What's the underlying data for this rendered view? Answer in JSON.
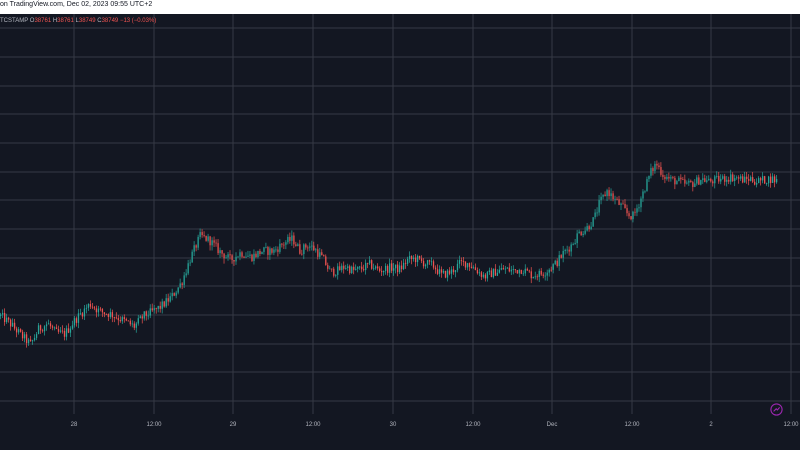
{
  "header": {
    "published": "on TradingView.com, Dec 02, 2023 09:55 UTC+2"
  },
  "legend": {
    "symbol_fragment": "TCSTAMP",
    "open": "38761",
    "high": "38761",
    "low": "38749",
    "close": "38749",
    "change": "−13 (−0.03%)"
  },
  "chart_data": {
    "type": "candlestick",
    "title": "",
    "x_ticks": [
      "28",
      "12:00",
      "29",
      "12:00",
      "30",
      "12:00",
      "Dec",
      "12:00",
      "2",
      "12:00"
    ],
    "x_range": [
      "Nov 27 19:00",
      "Dec 02 10:00"
    ],
    "y_range": [
      36300,
      38950
    ],
    "grid": true,
    "price_path": [
      [
        0.0,
        36950
      ],
      [
        0.01,
        36900
      ],
      [
        0.022,
        36820
      ],
      [
        0.032,
        36760
      ],
      [
        0.04,
        36860
      ],
      [
        0.05,
        36900
      ],
      [
        0.058,
        36840
      ],
      [
        0.068,
        36830
      ],
      [
        0.08,
        36930
      ],
      [
        0.095,
        37030
      ],
      [
        0.105,
        36980
      ],
      [
        0.118,
        36960
      ],
      [
        0.13,
        36920
      ],
      [
        0.142,
        36880
      ],
      [
        0.152,
        36950
      ],
      [
        0.162,
        36980
      ],
      [
        0.172,
        37020
      ],
      [
        0.182,
        37080
      ],
      [
        0.192,
        37170
      ],
      [
        0.202,
        37340
      ],
      [
        0.212,
        37480
      ],
      [
        0.222,
        37450
      ],
      [
        0.232,
        37380
      ],
      [
        0.244,
        37320
      ],
      [
        0.255,
        37370
      ],
      [
        0.266,
        37340
      ],
      [
        0.278,
        37380
      ],
      [
        0.29,
        37380
      ],
      [
        0.3,
        37430
      ],
      [
        0.31,
        37460
      ],
      [
        0.318,
        37380
      ],
      [
        0.326,
        37420
      ],
      [
        0.334,
        37390
      ],
      [
        0.342,
        37330
      ],
      [
        0.35,
        37240
      ],
      [
        0.358,
        37250
      ],
      [
        0.366,
        37280
      ],
      [
        0.374,
        37250
      ],
      [
        0.382,
        37260
      ],
      [
        0.392,
        37290
      ],
      [
        0.402,
        37250
      ],
      [
        0.414,
        37270
      ],
      [
        0.424,
        37260
      ],
      [
        0.432,
        37320
      ],
      [
        0.44,
        37330
      ],
      [
        0.45,
        37300
      ],
      [
        0.46,
        37280
      ],
      [
        0.468,
        37220
      ],
      [
        0.478,
        37240
      ],
      [
        0.488,
        37300
      ],
      [
        0.496,
        37300
      ],
      [
        0.504,
        37260
      ],
      [
        0.514,
        37210
      ],
      [
        0.524,
        37240
      ],
      [
        0.534,
        37260
      ],
      [
        0.544,
        37250
      ],
      [
        0.554,
        37260
      ],
      [
        0.564,
        37220
      ],
      [
        0.574,
        37230
      ],
      [
        0.58,
        37250
      ],
      [
        0.59,
        37300
      ],
      [
        0.598,
        37370
      ],
      [
        0.606,
        37420
      ],
      [
        0.614,
        37500
      ],
      [
        0.622,
        37530
      ],
      [
        0.63,
        37590
      ],
      [
        0.636,
        37700
      ],
      [
        0.644,
        37780
      ],
      [
        0.652,
        37720
      ],
      [
        0.66,
        37670
      ],
      [
        0.666,
        37620
      ],
      [
        0.672,
        37610
      ],
      [
        0.678,
        37700
      ],
      [
        0.684,
        37800
      ],
      [
        0.69,
        37900
      ],
      [
        0.696,
        37960
      ],
      [
        0.704,
        37880
      ],
      [
        0.712,
        37850
      ],
      [
        0.72,
        37840
      ],
      [
        0.728,
        37820
      ],
      [
        0.736,
        37830
      ],
      [
        0.744,
        37860
      ],
      [
        0.752,
        37840
      ],
      [
        0.76,
        37850
      ],
      [
        0.768,
        37860
      ],
      [
        0.776,
        37870
      ],
      [
        0.784,
        37860
      ],
      [
        0.79,
        37850
      ],
      [
        0.796,
        37860
      ],
      [
        0.802,
        37840
      ],
      [
        0.81,
        37850
      ],
      [
        0.818,
        37860
      ],
      [
        0.826,
        37840
      ]
    ]
  },
  "colors": {
    "background": "#131722",
    "grid": "#363a45",
    "up": "#26a69a",
    "down": "#ef5350",
    "axis_text": "#b2b5be"
  },
  "icons": {
    "logo": "tradingview-logo-icon"
  }
}
